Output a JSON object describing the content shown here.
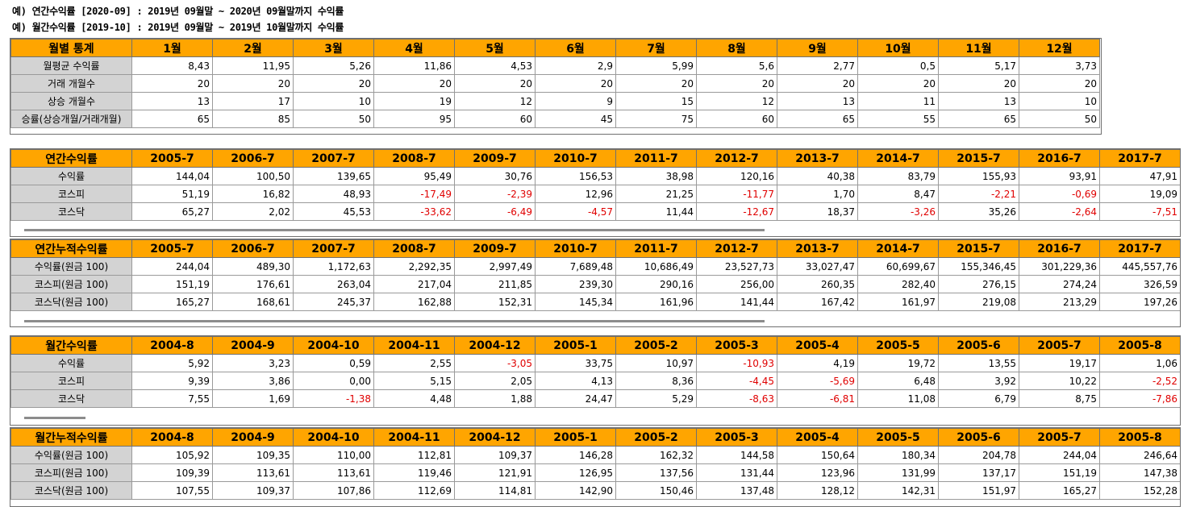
{
  "notes": [
    "예) 연간수익률 [2020-09] : 2019년 09월말 ~ 2020년 09월말까지 수익률",
    "예) 월간수익률 [2019-10] : 2019년 09월말 ~ 2019년 10월말까지 수익률"
  ],
  "tables": [
    {
      "name": "monthly-stats",
      "title": "월별 통계",
      "columns": [
        "1월",
        "2월",
        "3월",
        "4월",
        "5월",
        "6월",
        "7월",
        "8월",
        "9월",
        "10월",
        "11월",
        "12월"
      ],
      "rows": [
        {
          "label": "월평균 수익률",
          "values": [
            "8,43",
            "11,95",
            "5,26",
            "11,86",
            "4,53",
            "2,9",
            "5,99",
            "5,6",
            "2,77",
            "0,5",
            "5,17",
            "3,73"
          ]
        },
        {
          "label": "거래 개월수",
          "values": [
            "20",
            "20",
            "20",
            "20",
            "20",
            "20",
            "20",
            "20",
            "20",
            "20",
            "20",
            "20"
          ]
        },
        {
          "label": "상승 개월수",
          "values": [
            "13",
            "17",
            "10",
            "19",
            "12",
            "9",
            "15",
            "12",
            "13",
            "11",
            "13",
            "10"
          ]
        },
        {
          "label": "승률(상승개월/거래개월)",
          "values": [
            "65",
            "85",
            "50",
            "95",
            "60",
            "45",
            "75",
            "60",
            "65",
            "55",
            "65",
            "50"
          ]
        }
      ]
    },
    {
      "name": "annual-return",
      "title": "연간수익률",
      "columns": [
        "2005-7",
        "2006-7",
        "2007-7",
        "2008-7",
        "2009-7",
        "2010-7",
        "2011-7",
        "2012-7",
        "2013-7",
        "2014-7",
        "2015-7",
        "2016-7",
        "2017-7"
      ],
      "rows": [
        {
          "label": "수익률",
          "values": [
            "144,04",
            "100,50",
            "139,65",
            "95,49",
            "30,76",
            "156,53",
            "38,98",
            "120,16",
            "40,38",
            "83,79",
            "155,93",
            "93,91",
            "47,91"
          ]
        },
        {
          "label": "코스피",
          "values": [
            "51,19",
            "16,82",
            "48,93",
            "-17,49",
            "-2,39",
            "12,96",
            "21,25",
            "-11,77",
            "1,70",
            "8,47",
            "-2,21",
            "-0,69",
            "19,09"
          ]
        },
        {
          "label": "코스닥",
          "values": [
            "65,27",
            "2,02",
            "45,53",
            "-33,62",
            "-6,49",
            "-4,57",
            "11,44",
            "-12,67",
            "18,37",
            "-3,26",
            "35,26",
            "-2,64",
            "-7,51"
          ]
        }
      ]
    },
    {
      "name": "annual-cumulative-return",
      "title": "연간누적수익률",
      "columns": [
        "2005-7",
        "2006-7",
        "2007-7",
        "2008-7",
        "2009-7",
        "2010-7",
        "2011-7",
        "2012-7",
        "2013-7",
        "2014-7",
        "2015-7",
        "2016-7",
        "2017-7"
      ],
      "rows": [
        {
          "label": "수익률(원금 100)",
          "values": [
            "244,04",
            "489,30",
            "1,172,63",
            "2,292,35",
            "2,997,49",
            "7,689,48",
            "10,686,49",
            "23,527,73",
            "33,027,47",
            "60,699,67",
            "155,346,45",
            "301,229,36",
            "445,557,76"
          ]
        },
        {
          "label": "코스피(원금 100)",
          "values": [
            "151,19",
            "176,61",
            "263,04",
            "217,04",
            "211,85",
            "239,30",
            "290,16",
            "256,00",
            "260,35",
            "282,40",
            "276,15",
            "274,24",
            "326,59"
          ]
        },
        {
          "label": "코스닥(원금 100)",
          "values": [
            "165,27",
            "168,61",
            "245,37",
            "162,88",
            "152,31",
            "145,34",
            "161,96",
            "141,44",
            "167,42",
            "161,97",
            "219,08",
            "213,29",
            "197,26"
          ]
        }
      ]
    },
    {
      "name": "monthly-return",
      "title": "월간수익률",
      "columns": [
        "2004-8",
        "2004-9",
        "2004-10",
        "2004-11",
        "2004-12",
        "2005-1",
        "2005-2",
        "2005-3",
        "2005-4",
        "2005-5",
        "2005-6",
        "2005-7",
        "2005-8"
      ],
      "rows": [
        {
          "label": "수익률",
          "values": [
            "5,92",
            "3,23",
            "0,59",
            "2,55",
            "-3,05",
            "33,75",
            "10,97",
            "-10,93",
            "4,19",
            "19,72",
            "13,55",
            "19,17",
            "1,06"
          ]
        },
        {
          "label": "코스피",
          "values": [
            "9,39",
            "3,86",
            "0,00",
            "5,15",
            "2,05",
            "4,13",
            "8,36",
            "-4,45",
            "-5,69",
            "6,48",
            "3,92",
            "10,22",
            "-2,52"
          ]
        },
        {
          "label": "코스닥",
          "values": [
            "7,55",
            "1,69",
            "-1,38",
            "4,48",
            "1,88",
            "24,47",
            "5,29",
            "-8,63",
            "-6,81",
            "11,08",
            "6,79",
            "8,75",
            "-7,86"
          ]
        }
      ]
    },
    {
      "name": "monthly-cumulative-return",
      "title": "월간누적수익률",
      "columns": [
        "2004-8",
        "2004-9",
        "2004-10",
        "2004-11",
        "2004-12",
        "2005-1",
        "2005-2",
        "2005-3",
        "2005-4",
        "2005-5",
        "2005-6",
        "2005-7",
        "2005-8"
      ],
      "rows": [
        {
          "label": "수익률(원금 100)",
          "values": [
            "105,92",
            "109,35",
            "110,00",
            "112,81",
            "109,37",
            "146,28",
            "162,32",
            "144,58",
            "150,64",
            "180,34",
            "204,78",
            "244,04",
            "246,64"
          ]
        },
        {
          "label": "코스피(원금 100)",
          "values": [
            "109,39",
            "113,61",
            "113,61",
            "119,46",
            "121,91",
            "126,95",
            "137,56",
            "131,44",
            "123,96",
            "131,99",
            "137,17",
            "151,19",
            "147,38"
          ]
        },
        {
          "label": "코스닥(원금 100)",
          "values": [
            "107,55",
            "109,37",
            "107,86",
            "112,69",
            "114,81",
            "142,90",
            "150,46",
            "137,48",
            "128,12",
            "142,31",
            "151,97",
            "165,27",
            "152,28"
          ]
        }
      ]
    }
  ],
  "colors": {
    "header_bg": "#ffa500",
    "rowhead_bg": "#d3d3d3",
    "negative_text": "#e00000"
  }
}
